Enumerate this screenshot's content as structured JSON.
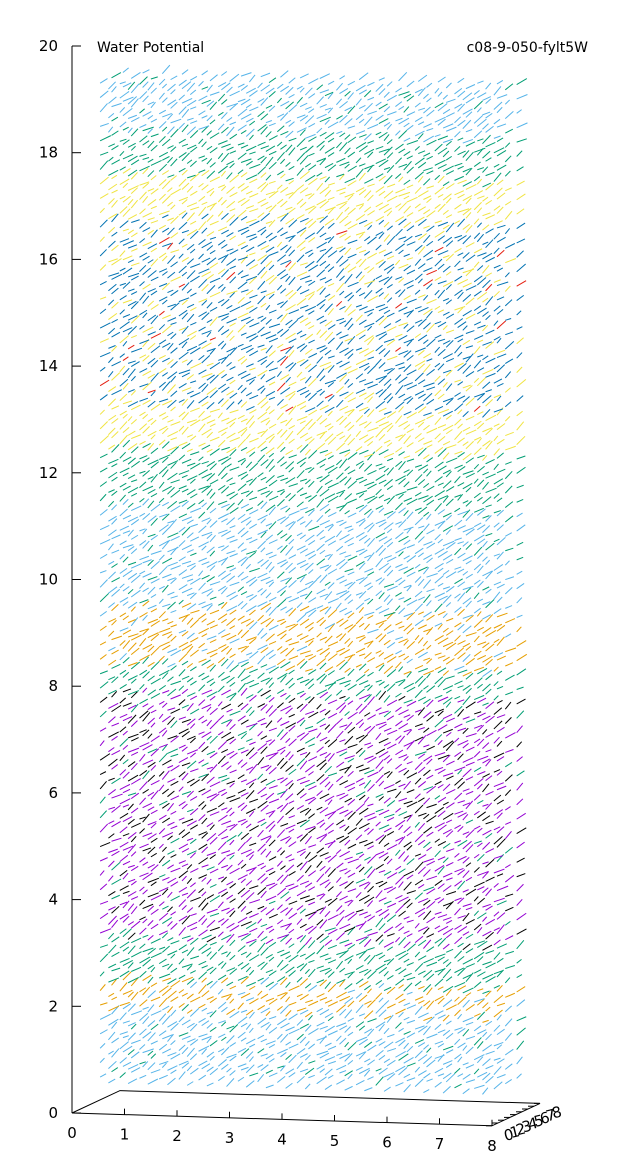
{
  "chart_data": {
    "type": "vector-field-3d",
    "title": "Water Potential",
    "subtitle": "c08-9-050-fylt5W",
    "xlabel": "",
    "ylabel": "",
    "zlabel": "",
    "xlim": [
      0,
      8
    ],
    "ylim": [
      0,
      8
    ],
    "zlim": [
      0,
      20
    ],
    "x_ticks": [
      "0",
      "1",
      "2",
      "3",
      "4",
      "5",
      "6",
      "7",
      "8"
    ],
    "y_ticks": [
      "0",
      "1",
      "2",
      "3",
      "4",
      "5",
      "6",
      "7",
      "8"
    ],
    "z_ticks": [
      "0",
      "2",
      "4",
      "6",
      "8",
      "10",
      "12",
      "14",
      "16",
      "18",
      "20"
    ],
    "colors": {
      "light_blue": "#56b4e9",
      "green": "#009e73",
      "yellow": "#f0e442",
      "orange": "#e69f00",
      "dark_blue": "#0072b2",
      "purple": "#9400d3",
      "black": "#000000",
      "red": "#e51e10"
    },
    "bands": [
      {
        "z": [
          0.5,
          1.8
        ],
        "color": "light_blue"
      },
      {
        "z": [
          1.8,
          2.4
        ],
        "color": "orange"
      },
      {
        "z": [
          2.4,
          3.0
        ],
        "color": "green"
      },
      {
        "z": [
          3.0,
          7.6
        ],
        "color": "purple"
      },
      {
        "z": [
          7.6,
          8.2
        ],
        "color": "green"
      },
      {
        "z": [
          8.2,
          9.2
        ],
        "color": "orange"
      },
      {
        "z": [
          9.2,
          11.2
        ],
        "color": "light_blue"
      },
      {
        "z": [
          11.2,
          12.2
        ],
        "color": "green"
      },
      {
        "z": [
          12.2,
          13.0
        ],
        "color": "yellow"
      },
      {
        "z": [
          13.0,
          16.6
        ],
        "color": "dark_blue"
      },
      {
        "z": [
          16.6,
          17.3
        ],
        "color": "yellow"
      },
      {
        "z": [
          17.3,
          18.3
        ],
        "color": "green"
      },
      {
        "z": [
          18.3,
          19.3
        ],
        "color": "light_blue"
      }
    ]
  }
}
